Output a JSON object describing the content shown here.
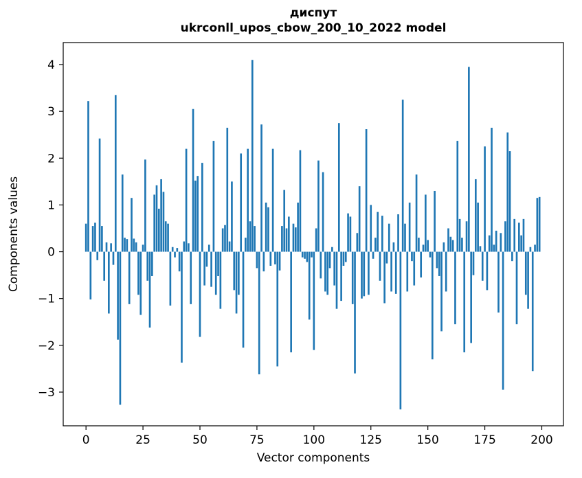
{
  "title": {
    "line1": "диспут",
    "line2": "ukrconll_upos_cbow_200_10_2022 model"
  },
  "chart_data": {
    "type": "bar",
    "title": "диспут",
    "subtitle": "ukrconll_upos_cbow_200_10_2022 model",
    "xlabel": "Vector components",
    "ylabel": "Components values",
    "bar_color": "#1f77b4",
    "background_color": "#ffffff",
    "grid": false,
    "legend": "none",
    "xlim": [
      -10,
      209.5
    ],
    "ylim": [
      -3.72,
      4.47
    ],
    "xtick_values": [
      0,
      25,
      50,
      75,
      100,
      125,
      150,
      175,
      200
    ],
    "xtick_labels": [
      "0",
      "25",
      "50",
      "75",
      "100",
      "125",
      "150",
      "175",
      "200"
    ],
    "ytick_values": [
      -3,
      -2,
      -1,
      0,
      1,
      2,
      3,
      4
    ],
    "ytick_labels": [
      "−3",
      "−2",
      "−1",
      "0",
      "1",
      "2",
      "3",
      "4"
    ],
    "bar_width": 0.8,
    "values": [
      0.6,
      3.22,
      -1.02,
      0.55,
      0.62,
      -0.18,
      2.42,
      0.55,
      -0.62,
      0.2,
      -1.32,
      0.18,
      -0.28,
      3.35,
      -1.88,
      -3.27,
      1.65,
      0.3,
      0.27,
      -1.12,
      1.15,
      0.28,
      0.2,
      -0.92,
      -1.35,
      0.15,
      1.97,
      -0.62,
      -1.62,
      -0.52,
      1.22,
      1.42,
      0.92,
      1.55,
      1.28,
      0.65,
      0.6,
      -1.15,
      0.1,
      -0.12,
      0.08,
      -0.42,
      -2.37,
      0.22,
      2.2,
      0.18,
      -1.12,
      3.05,
      1.52,
      1.62,
      -1.82,
      1.9,
      -0.72,
      -0.32,
      0.15,
      -0.75,
      2.37,
      -0.92,
      -0.52,
      -1.22,
      0.5,
      0.57,
      2.65,
      0.22,
      1.5,
      -0.82,
      -1.32,
      -0.92,
      2.1,
      -2.05,
      0.3,
      2.2,
      0.65,
      4.1,
      0.55,
      -0.35,
      -2.62,
      2.72,
      -0.42,
      1.05,
      0.95,
      -0.3,
      2.2,
      -0.27,
      -2.45,
      -0.4,
      0.55,
      1.32,
      0.5,
      0.75,
      -2.15,
      0.6,
      0.52,
      1.05,
      2.17,
      -0.12,
      -0.15,
      -0.22,
      -1.45,
      -0.12,
      -2.1,
      0.5,
      1.95,
      -0.57,
      1.7,
      -0.85,
      -0.92,
      -0.35,
      0.1,
      -0.72,
      -1.22,
      2.75,
      -1.05,
      -0.3,
      -0.22,
      0.82,
      0.75,
      -1.12,
      -2.6,
      0.4,
      1.4,
      -1.0,
      -0.95,
      2.62,
      -0.92,
      1.0,
      -0.15,
      0.3,
      0.85,
      -0.62,
      0.77,
      -1.1,
      -0.25,
      0.6,
      -0.85,
      0.2,
      -0.9,
      0.8,
      -3.37,
      3.25,
      0.6,
      -0.85,
      1.05,
      -0.2,
      -0.72,
      1.65,
      0.3,
      -0.55,
      0.15,
      1.22,
      0.25,
      -0.12,
      -2.3,
      1.3,
      -0.35,
      -0.52,
      -1.7,
      0.2,
      -0.85,
      0.5,
      0.32,
      0.25,
      -1.55,
      2.37,
      0.7,
      0.3,
      -2.15,
      0.65,
      3.95,
      -1.95,
      -0.5,
      1.55,
      1.05,
      0.12,
      -0.62,
      2.25,
      -0.82,
      0.35,
      2.65,
      0.15,
      0.45,
      -1.3,
      0.4,
      -2.95,
      0.65,
      2.55,
      2.15,
      -0.2,
      0.7,
      -1.55,
      0.62,
      0.35,
      0.7,
      -0.92,
      -1.22,
      0.1,
      -2.55,
      0.15,
      1.15,
      1.17
    ]
  }
}
